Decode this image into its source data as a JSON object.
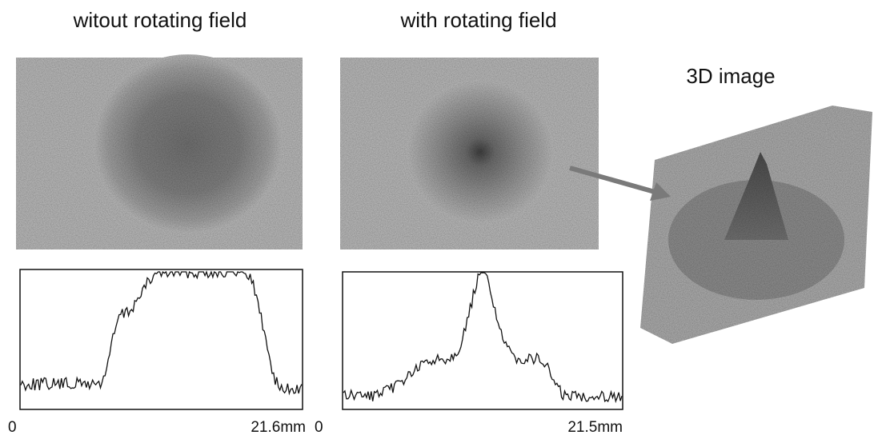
{
  "panels": [
    {
      "title": "witout rotating field",
      "axis_start": "0",
      "axis_end": "21.6mm"
    },
    {
      "title": "with rotating field",
      "axis_start": "0",
      "axis_end": "21.5mm"
    }
  ],
  "image_3d": {
    "label": "3D image"
  }
}
